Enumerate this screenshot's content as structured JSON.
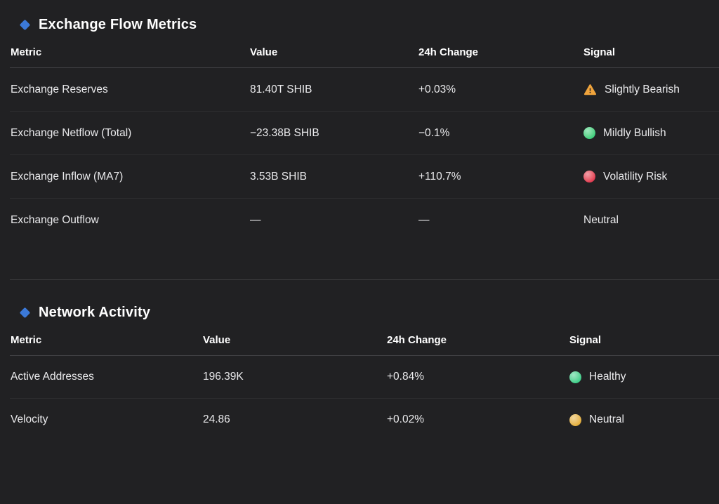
{
  "page": {
    "background": "#212123",
    "accent_blue": "#3b79d8"
  },
  "sections": [
    {
      "title": "Exchange Flow Metrics",
      "columns": [
        "Metric",
        "Value",
        "24h Change",
        "Signal"
      ],
      "rows": [
        {
          "metric": "Exchange Reserves",
          "value": "81.40T SHIB",
          "change": "+0.03%",
          "signal": "Slightly Bearish",
          "icon": "warning",
          "icon_color": "#f0a43c"
        },
        {
          "metric": "Exchange Netflow (Total)",
          "value": "−23.38B SHIB",
          "change": "−0.1%",
          "signal": "Mildly Bullish",
          "icon": "dot",
          "icon_color": "#3ecf7c"
        },
        {
          "metric": "Exchange Inflow (MA7)",
          "value": "3.53B SHIB",
          "change": "+110.7%",
          "signal": "Volatility Risk",
          "icon": "dot",
          "icon_color": "#e23c52"
        },
        {
          "metric": "Exchange Outflow",
          "value": "—",
          "change": "—",
          "signal": "Neutral",
          "icon": "none",
          "icon_color": ""
        }
      ]
    },
    {
      "title": "Network Activity",
      "columns": [
        "Metric",
        "Value",
        "24h Change",
        "Signal"
      ],
      "rows": [
        {
          "metric": "Active Addresses",
          "value": "196.39K",
          "change": "+0.84%",
          "signal": "Healthy",
          "icon": "dot",
          "icon_color": "#3ecf8b"
        },
        {
          "metric": "Velocity",
          "value": "24.86",
          "change": "+0.02%",
          "signal": "Neutral",
          "icon": "dot",
          "icon_color": "#e4af3a"
        }
      ]
    }
  ]
}
